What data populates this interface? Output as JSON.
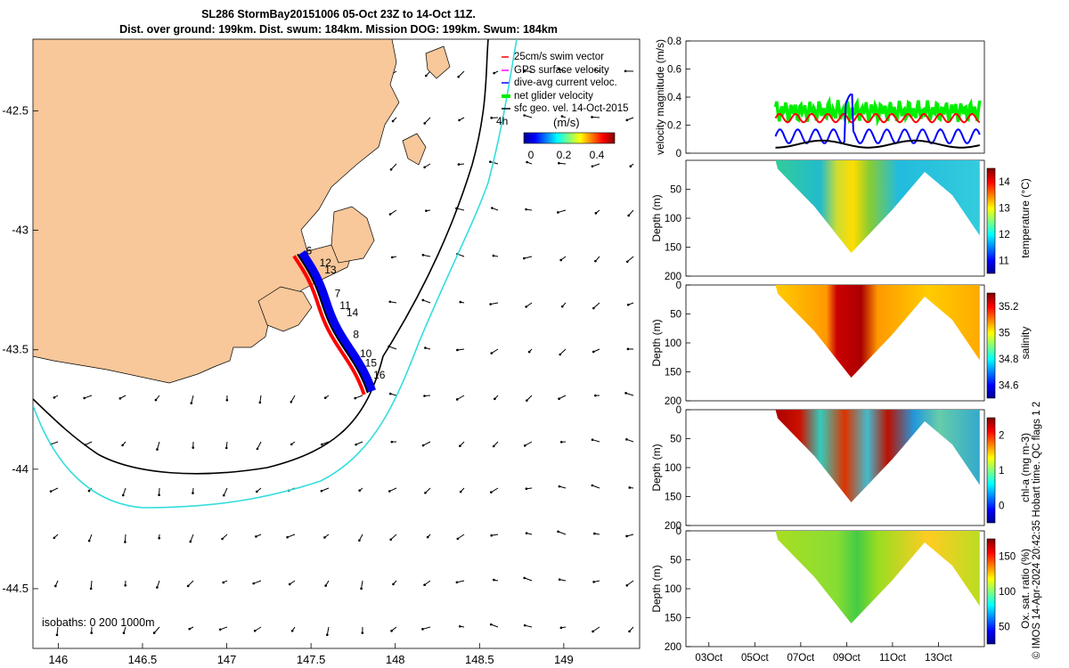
{
  "title": {
    "line1": "SL286 StormBay20151006 05-Oct 23Z to 14-Oct 11Z.",
    "line2": "Dist. over ground: 199km. Dist. swum: 184km. Mission DOG: 199km. Swum: 184km"
  },
  "footer": "© IMOS 14-Apr-2024 20:42:35 Hobart time. QC flags 1  2",
  "colors": {
    "land": "#f8c79a",
    "swim": "#ff0000",
    "gps": "#ff00ff",
    "dive": "#0000ff",
    "net": "#00ee00",
    "geo": "#000000",
    "isobath200": "#000000",
    "isobath1000": "#33dddd"
  },
  "chart_data": [
    {
      "type": "map",
      "x_ticks": [
        "146",
        "146.5",
        "147",
        "147.5",
        "148",
        "148.5",
        "149"
      ],
      "y_ticks": [
        "-42.5",
        "-43",
        "-43.5",
        "-44",
        "-44.5"
      ],
      "xlim": [
        145.85,
        149.45
      ],
      "ylim": [
        -44.75,
        -42.2
      ],
      "legend": [
        "25cm/s swim vector",
        "GPS surface velocity",
        "dive-avg current veloc.",
        "net glider velocity",
        "sfc geo. vel. 14-Oct-2015"
      ],
      "legend_placement": "top-right",
      "colorbar": {
        "label": "(m/s)",
        "ticks": [
          "0",
          "0.2",
          "0.4"
        ],
        "range": [
          0,
          0.5
        ]
      },
      "annotations": {
        "isobaths": "isobaths: 0   200  1000m",
        "time_label": "4h"
      },
      "track": {
        "lon_start": 147.42,
        "lat_start": -43.1,
        "lon_end": 147.83,
        "lat_end": -43.68
      },
      "day_labels": [
        {
          "text": "6",
          "lon": 147.47,
          "lat": -43.1
        },
        {
          "text": "12",
          "lon": 147.55,
          "lat": -43.15
        },
        {
          "text": "13",
          "lon": 147.58,
          "lat": -43.18
        },
        {
          "text": "7",
          "lon": 147.64,
          "lat": -43.28
        },
        {
          "text": "11",
          "lon": 147.67,
          "lat": -43.33
        },
        {
          "text": "14",
          "lon": 147.71,
          "lat": -43.36
        },
        {
          "text": "8",
          "lon": 147.75,
          "lat": -43.45
        },
        {
          "text": "10",
          "lon": 147.79,
          "lat": -43.53
        },
        {
          "text": "15",
          "lon": 147.82,
          "lat": -43.57
        },
        {
          "text": "16",
          "lon": 147.87,
          "lat": -43.62
        }
      ]
    },
    {
      "type": "line",
      "ylabel": "velocity magnitude (m/s)",
      "ylim": [
        0,
        0.8
      ],
      "yticks": [
        "0",
        "0.2",
        "0.4",
        "0.6",
        "0.8"
      ],
      "x_days": [
        2,
        15
      ],
      "series": [
        {
          "name": "net glider velocity",
          "color": "#00ee00",
          "mean": 0.3
        },
        {
          "name": "GPS surface velocity",
          "color": "#ff0000",
          "mean": 0.25
        },
        {
          "name": "dive-avg current veloc.",
          "color": "#0000ff",
          "mean": 0.12
        },
        {
          "name": "sfc geo. vel.",
          "color": "#000000",
          "mean": 0.06
        }
      ]
    },
    {
      "type": "heatmap",
      "ylabel": "Depth (m)",
      "cbar_label": "temperature (°C)",
      "cbar_ticks": [
        "11",
        "12",
        "13",
        "14"
      ],
      "ylim": [
        0,
        200
      ],
      "yticks": [
        "50",
        "100",
        "150",
        "200"
      ]
    },
    {
      "type": "heatmap",
      "ylabel": "Depth (m)",
      "cbar_label": "salinity",
      "cbar_ticks": [
        "34.6",
        "34.8",
        "35",
        "35.2"
      ],
      "ylim": [
        0,
        200
      ],
      "yticks": [
        "0",
        "50",
        "100",
        "150",
        "200"
      ]
    },
    {
      "type": "heatmap",
      "ylabel": "Depth (m)",
      "cbar_label": "chl-a (mg m-3)",
      "cbar_ticks": [
        "0",
        "1",
        "2"
      ],
      "ylim": [
        0,
        200
      ],
      "yticks": [
        "0",
        "50",
        "100",
        "150",
        "200"
      ]
    },
    {
      "type": "heatmap",
      "ylabel": "Depth (m)",
      "cbar_label": "Ox. sat. ratio (%)",
      "cbar_ticks": [
        "50",
        "100",
        "150"
      ],
      "ylim": [
        0,
        200
      ],
      "yticks": [
        "0",
        "50",
        "100",
        "150",
        "200"
      ],
      "x_ticks": [
        "03Oct",
        "05Oct",
        "07Oct",
        "09Oct",
        "11Oct",
        "13Oct"
      ],
      "x_tick_days": [
        3,
        5,
        7,
        9,
        11,
        13
      ]
    }
  ]
}
